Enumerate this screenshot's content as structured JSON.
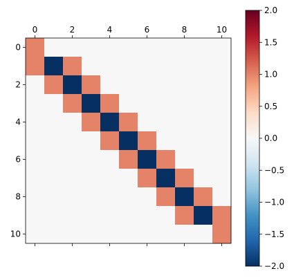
{
  "chart_data": {
    "type": "heatmap",
    "title": "",
    "xlabel": "",
    "ylabel": "",
    "x_ticks": [
      0,
      2,
      4,
      6,
      8,
      10
    ],
    "y_ticks": [
      0,
      2,
      4,
      6,
      8,
      10
    ],
    "x_tick_position": "top",
    "grid": false,
    "colormap": "RdBu_r",
    "vmin": -2.0,
    "vmax": 2.0,
    "colorbar_ticks": [
      "2.0",
      "1.5",
      "1.0",
      "0.5",
      "0.0",
      "−0.5",
      "−1.0",
      "−1.5",
      "−2.0"
    ],
    "colorbar_tick_values": [
      2.0,
      1.5,
      1.0,
      0.5,
      0.0,
      -0.5,
      -1.0,
      -1.5,
      -2.0
    ],
    "matrix": [
      [
        1,
        0,
        0,
        0,
        0,
        0,
        0,
        0,
        0,
        0,
        0
      ],
      [
        1,
        -2,
        1,
        0,
        0,
        0,
        0,
        0,
        0,
        0,
        0
      ],
      [
        0,
        1,
        -2,
        1,
        0,
        0,
        0,
        0,
        0,
        0,
        0
      ],
      [
        0,
        0,
        1,
        -2,
        1,
        0,
        0,
        0,
        0,
        0,
        0
      ],
      [
        0,
        0,
        0,
        1,
        -2,
        1,
        0,
        0,
        0,
        0,
        0
      ],
      [
        0,
        0,
        0,
        0,
        1,
        -2,
        1,
        0,
        0,
        0,
        0
      ],
      [
        0,
        0,
        0,
        0,
        0,
        1,
        -2,
        1,
        0,
        0,
        0
      ],
      [
        0,
        0,
        0,
        0,
        0,
        0,
        1,
        -2,
        1,
        0,
        0
      ],
      [
        0,
        0,
        0,
        0,
        0,
        0,
        0,
        1,
        -2,
        1,
        0
      ],
      [
        0,
        0,
        0,
        0,
        0,
        0,
        0,
        0,
        1,
        -2,
        1
      ],
      [
        0,
        0,
        0,
        0,
        0,
        0,
        0,
        0,
        0,
        0,
        1
      ]
    ]
  },
  "colors": {
    "positive_one": "#e58368",
    "zero": "#f7f6f6",
    "negative_two": "#053061"
  }
}
